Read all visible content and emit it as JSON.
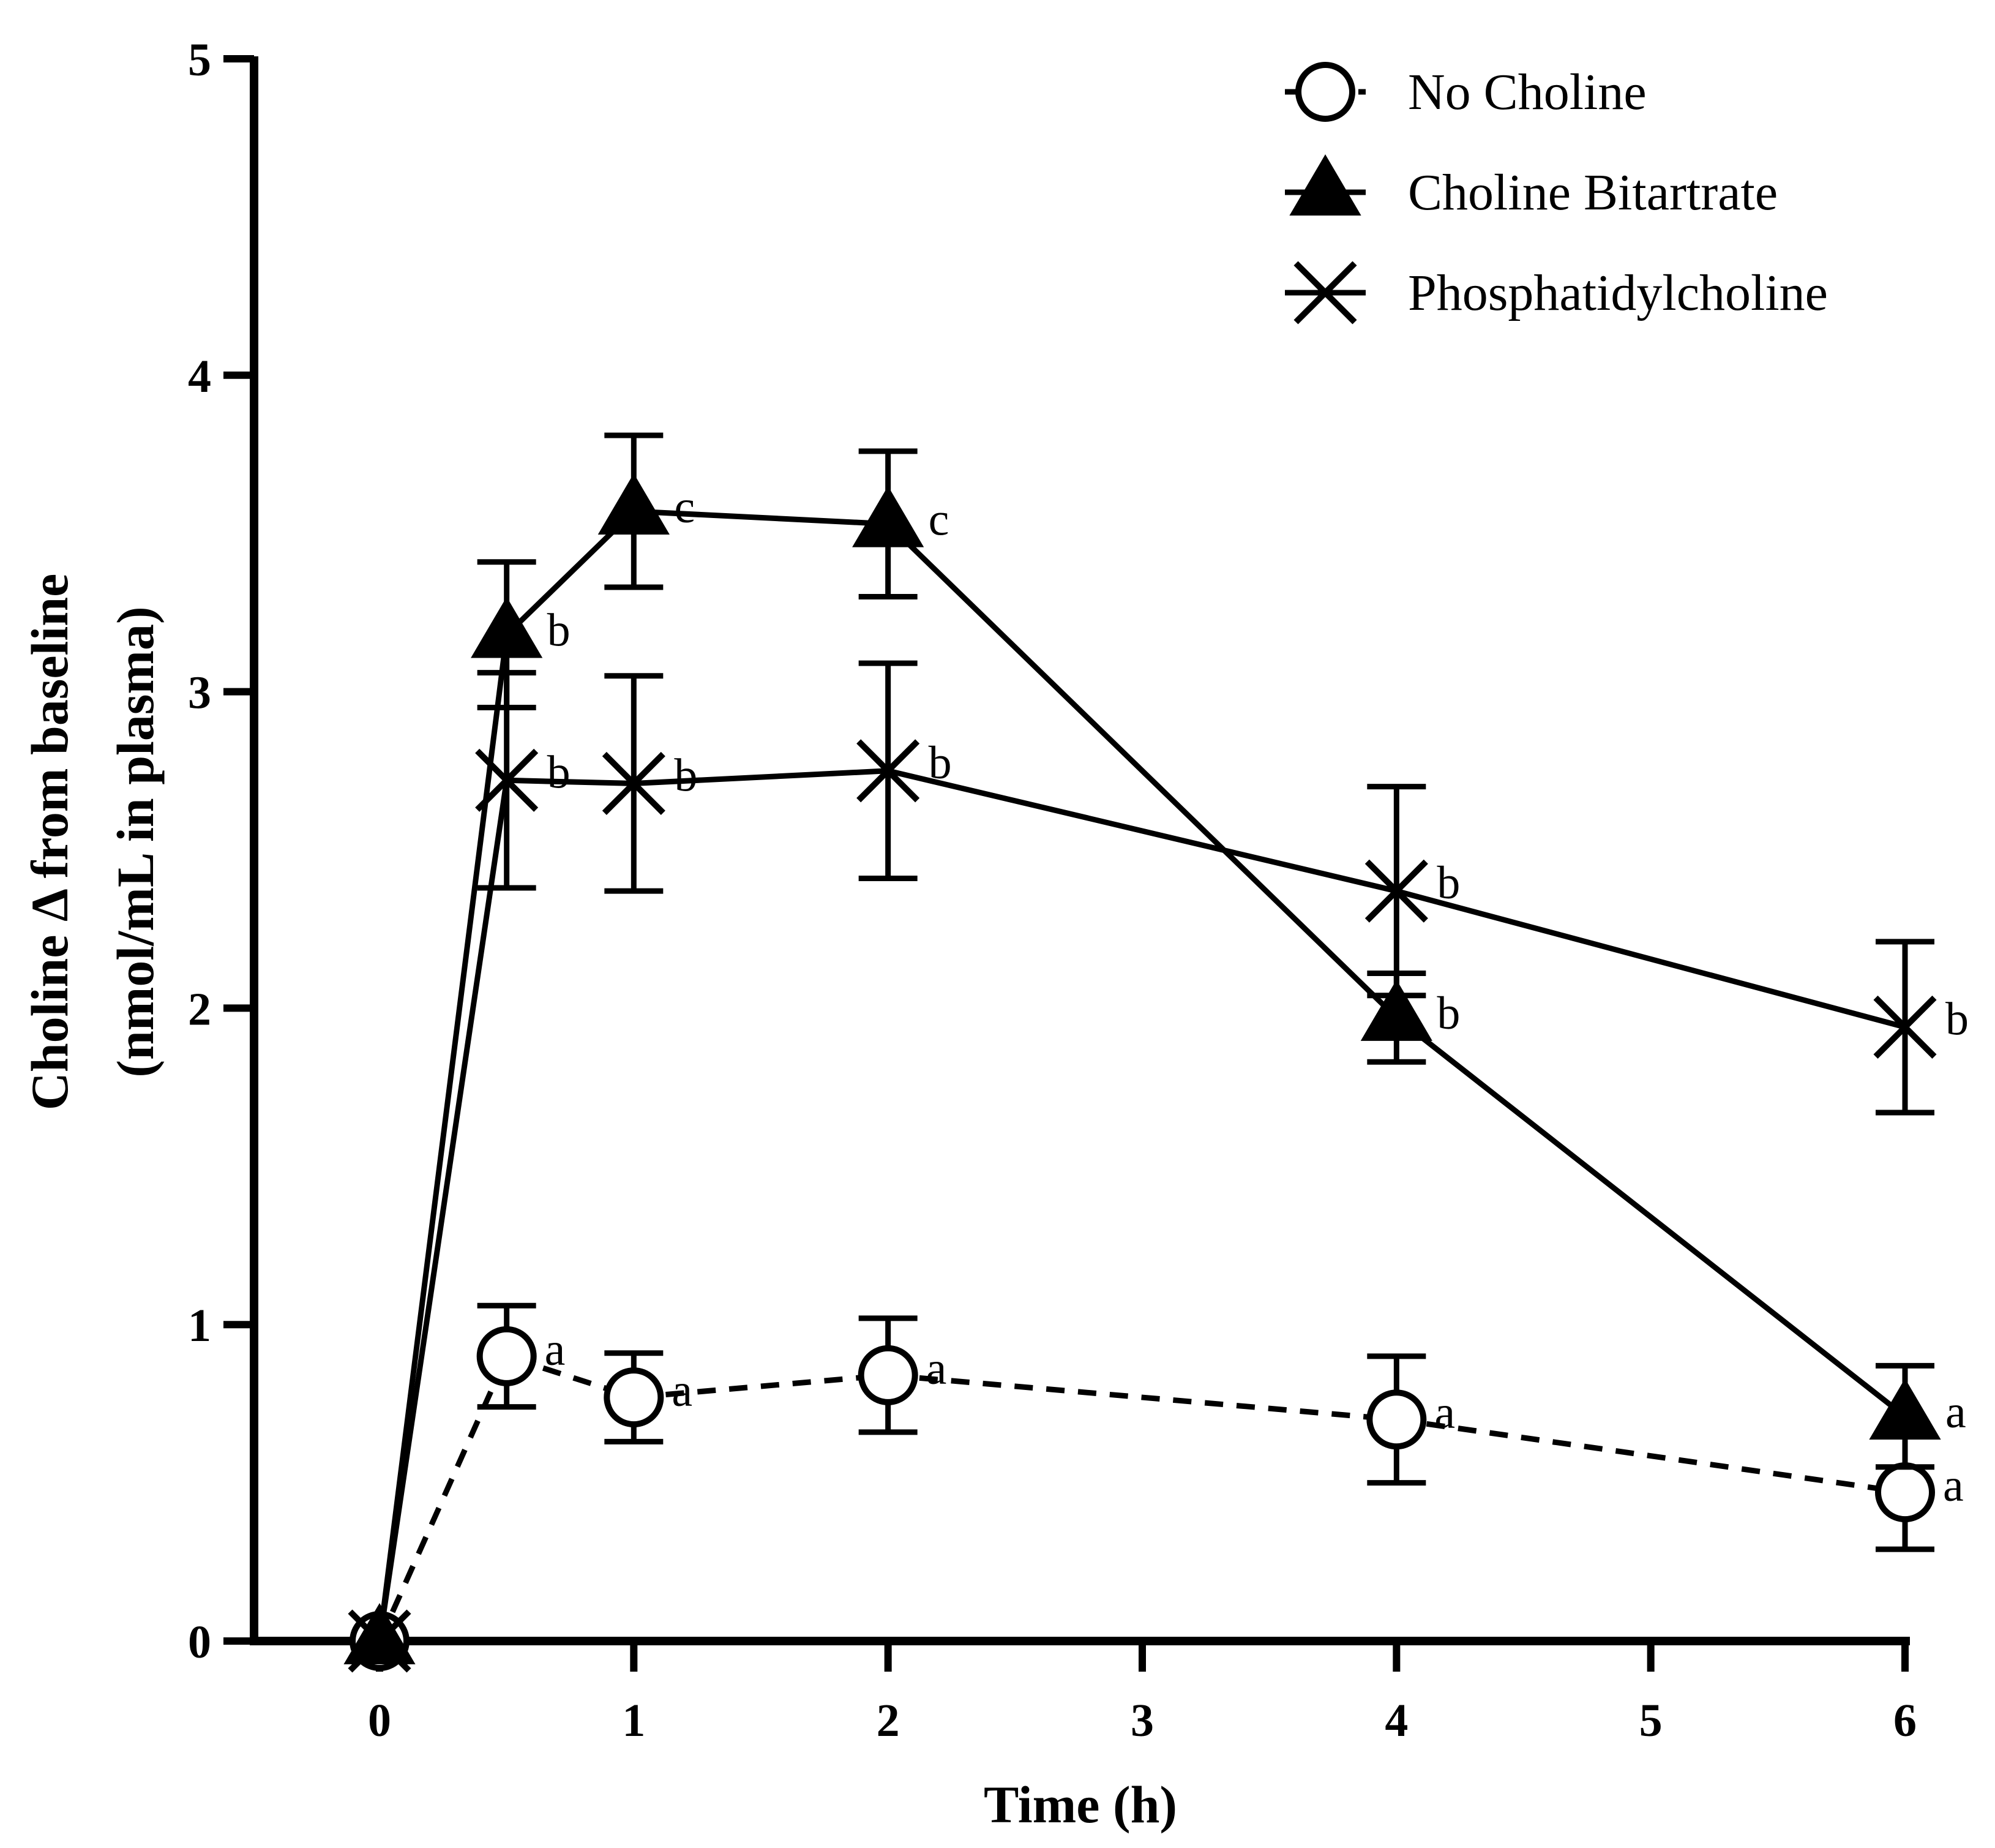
{
  "chart_data": {
    "type": "line",
    "title": "",
    "xlabel": "Time (h)",
    "ylabel_line1": "Choline Δ from baseline",
    "ylabel_line2": "(nmol/mL in plasma)",
    "xlim": [
      -0.5,
      6
    ],
    "ylim": [
      0,
      5
    ],
    "xticks": [
      0,
      1,
      2,
      3,
      4,
      5,
      6
    ],
    "yticks": [
      0,
      1,
      2,
      3,
      4,
      5
    ],
    "grid": false,
    "legend_position": "top-right",
    "series": [
      {
        "name": "No Choline",
        "marker": "open-circle",
        "line": "dashed",
        "x": [
          0,
          0.5,
          1,
          2,
          4,
          6
        ],
        "y": [
          0,
          0.9,
          0.77,
          0.84,
          0.7,
          0.47
        ],
        "err": [
          0,
          0.16,
          0.14,
          0.18,
          0.2,
          0.18
        ],
        "sig": [
          "",
          "a",
          "a",
          "a",
          "a",
          "a"
        ]
      },
      {
        "name": "Choline Bitartrate",
        "marker": "filled-triangle",
        "line": "solid",
        "x": [
          0,
          0.5,
          1,
          2,
          4,
          6
        ],
        "y": [
          0,
          3.18,
          3.57,
          3.53,
          1.97,
          0.71
        ],
        "err": [
          0,
          0.23,
          0.24,
          0.23,
          0.14,
          0.16
        ],
        "sig": [
          "",
          "b",
          "c",
          "c",
          "b",
          "a"
        ]
      },
      {
        "name": "Phosphatidylcholine",
        "marker": "x-cross",
        "line": "solid",
        "x": [
          0,
          0.5,
          1,
          2,
          4,
          6
        ],
        "y": [
          0,
          2.72,
          2.71,
          2.75,
          2.37,
          1.94
        ],
        "err": [
          0,
          0.34,
          0.34,
          0.34,
          0.33,
          0.27
        ],
        "sig": [
          "",
          "b",
          "b",
          "b",
          "b",
          "b"
        ]
      }
    ]
  }
}
